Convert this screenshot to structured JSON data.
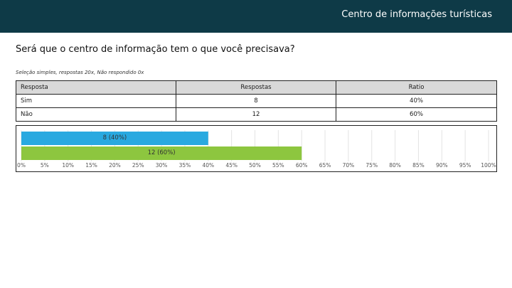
{
  "header": {
    "title": "Centro de informações turísticas"
  },
  "question": {
    "text": "Será que o centro de informação tem o que você precisava?"
  },
  "meta": {
    "text": "Seleção simples, respostas 20x, Não respondido 0x"
  },
  "table": {
    "headers": [
      "Resposta",
      "Respostas",
      "Ratio"
    ],
    "rows": [
      [
        "Sim",
        "8",
        "40%"
      ],
      [
        "Não",
        "12",
        "60%"
      ]
    ]
  },
  "colors": {
    "header_bg": "#0e3a47",
    "bar_sim": "#29a9e0",
    "bar_nao": "#8dc63f",
    "table_header_bg": "#d9d9d9"
  },
  "chart_data": {
    "type": "bar",
    "orientation": "horizontal",
    "categories": [
      "Sim",
      "Não"
    ],
    "values": [
      40,
      60
    ],
    "counts": [
      8,
      12
    ],
    "data_labels": [
      "8 (40%)",
      "12 (60%)"
    ],
    "colors": [
      "#29a9e0",
      "#8dc63f"
    ],
    "xlim": [
      0,
      100
    ],
    "x_tick_labels": [
      "0%",
      "5%",
      "10%",
      "15%",
      "20%",
      "25%",
      "30%",
      "35%",
      "40%",
      "45%",
      "50%",
      "55%",
      "60%",
      "65%",
      "70%",
      "75%",
      "80%",
      "85%",
      "90%",
      "95%",
      "100%"
    ],
    "grid": true,
    "legend": "none"
  }
}
